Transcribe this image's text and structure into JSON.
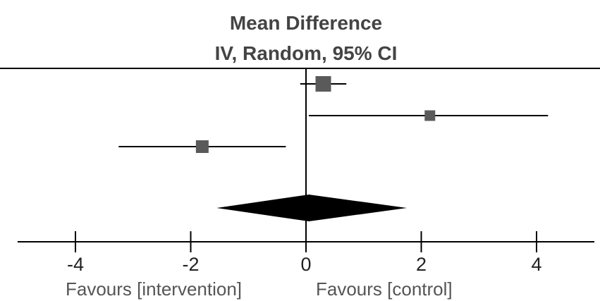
{
  "chart_data": {
    "type": "forest",
    "title": "Mean Difference",
    "subtitle": "IV, Random, 95% CI",
    "xlim": [
      -5,
      5
    ],
    "ticks": [
      -4,
      -2,
      0,
      2,
      4
    ],
    "tick_labels": [
      "-4",
      "-2",
      "0",
      "2",
      "4"
    ],
    "left_label": "Favours [intervention]",
    "right_label": "Favours [control]",
    "marker_color": "#5a5a5a",
    "studies": [
      {
        "estimate": 0.3,
        "ci_low": -0.1,
        "ci_high": 0.7,
        "weight": "large"
      },
      {
        "estimate": 2.15,
        "ci_low": 0.05,
        "ci_high": 4.2,
        "weight": "small"
      },
      {
        "estimate": -1.8,
        "ci_low": -3.25,
        "ci_high": -0.35,
        "weight": "medium"
      }
    ],
    "pooled": {
      "estimate": 0.05,
      "ci_low": -1.55,
      "ci_high": 1.75,
      "diamond_color": "#000000"
    }
  }
}
